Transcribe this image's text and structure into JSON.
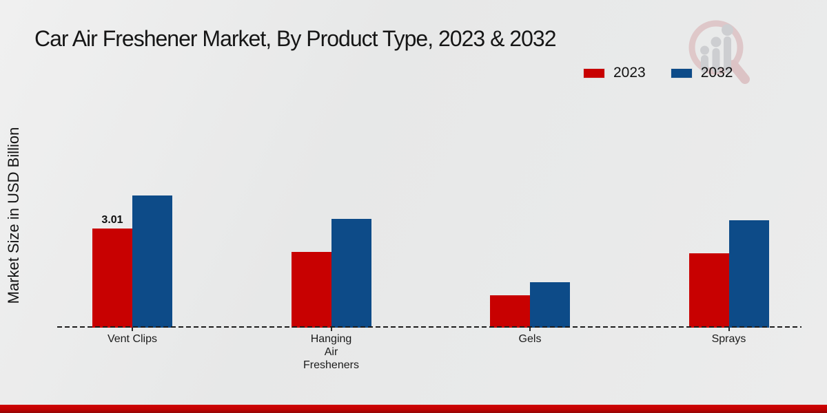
{
  "title": "Car Air Freshener Market, By Product Type, 2023 & 2032",
  "watermark_name": "market-research-future-logo",
  "colors": {
    "series_2023": "#c80101",
    "series_2032": "#0d4b88",
    "background": "#e9eaea",
    "footer_bar": "#c30202",
    "axis": "#1c1c1c"
  },
  "chart_data": {
    "type": "bar",
    "title": "Car Air Freshener Market, By Product Type, 2023 & 2032",
    "xlabel": "",
    "ylabel": "Market Size in USD Billion",
    "categories": [
      "Vent Clips",
      "Hanging Air Fresheners",
      "Gels",
      "Sprays"
    ],
    "category_display": [
      [
        "Vent Clips"
      ],
      [
        "Hanging",
        "Air",
        "Fresheners"
      ],
      [
        "Gels"
      ],
      [
        "Sprays"
      ]
    ],
    "series": [
      {
        "name": "2023",
        "color": "#c80101",
        "values": [
          3.01,
          2.3,
          0.99,
          2.25
        ]
      },
      {
        "name": "2032",
        "color": "#0d4b88",
        "values": [
          4.01,
          3.3,
          1.38,
          3.27
        ]
      }
    ],
    "data_labels": [
      {
        "series": "2023",
        "category": "Vent Clips",
        "text": "3.01"
      }
    ],
    "ylim": [
      0,
      4.5
    ],
    "grid": false,
    "baseline_style": "dashed",
    "legend_position": "top-right"
  }
}
